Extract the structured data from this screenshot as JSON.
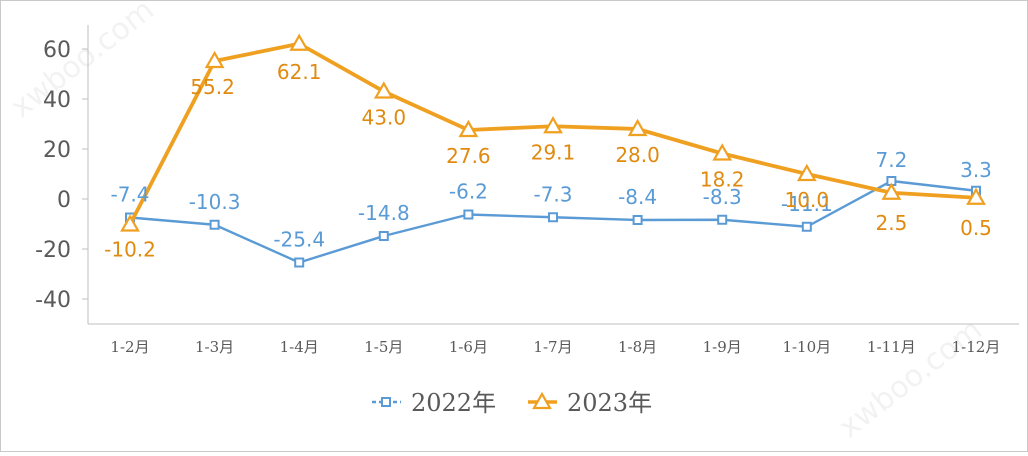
{
  "chart_data": {
    "type": "line",
    "categories": [
      "1-2月",
      "1-3月",
      "1-4月",
      "1-5月",
      "1-6月",
      "1-7月",
      "1-8月",
      "1-9月",
      "1-10月",
      "1-11月",
      "1-12月"
    ],
    "series": [
      {
        "name": "2022年",
        "color": "#5b9bd5",
        "marker": "square",
        "values": [
          -7.4,
          -10.3,
          -25.4,
          -14.8,
          -6.2,
          -7.3,
          -8.4,
          -8.3,
          -11.1,
          7.2,
          3.3
        ]
      },
      {
        "name": "2023年",
        "color": "#f0a020",
        "marker": "triangle",
        "values": [
          -10.2,
          55.2,
          62.1,
          43.0,
          27.6,
          29.1,
          28.0,
          18.2,
          10.0,
          2.5,
          0.5
        ]
      }
    ],
    "yticks": [
      60,
      40,
      20,
      0,
      -20,
      -40
    ],
    "ylim": [
      -50,
      70
    ],
    "grid": false,
    "legend": "bottom-center",
    "title": "",
    "xlabel": "",
    "ylabel": ""
  },
  "watermark": "xwboo.com"
}
